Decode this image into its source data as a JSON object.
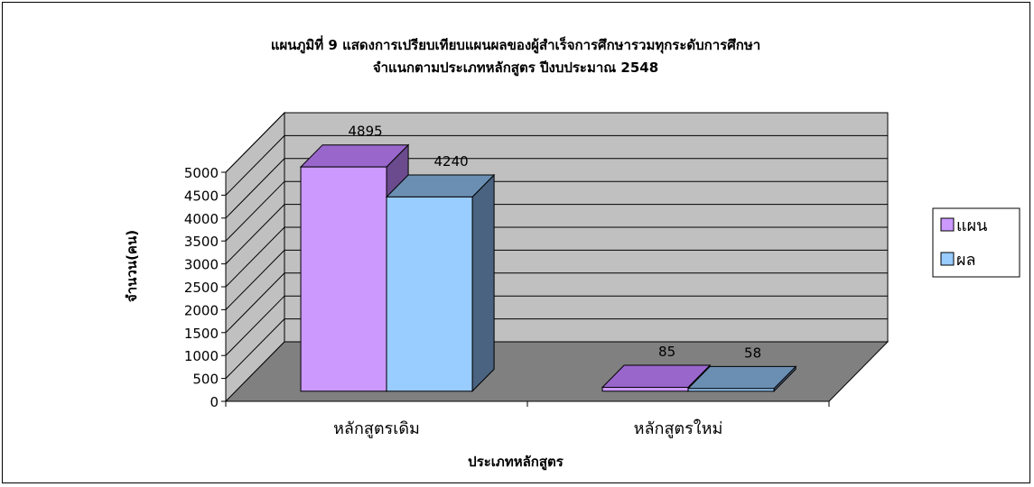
{
  "chart_data": {
    "type": "bar",
    "title_line1": "แผนภูมิที่ 9 แสดงการเปรียบเทียบแผนผลของผู้สำเร็จการศึกษารวมทุกระดับการศึกษา",
    "title_line2": "จำแนกตามประเภทหลักสูตร ปีงบประมาณ 2548",
    "xlabel": "ประเภทหลักสูตร",
    "ylabel": "จำนวน(คน)",
    "categories": [
      "หลักสูตรเดิม",
      "หลักสูตรใหม่"
    ],
    "series": [
      {
        "name": "แผน",
        "values": [
          4895,
          85
        ],
        "front": "#cc99ff",
        "top": "#9966cc",
        "side": "#6b4a8e"
      },
      {
        "name": "ผล",
        "values": [
          4240,
          58
        ],
        "front": "#99ccff",
        "top": "#6b8fb3",
        "side": "#4a6380"
      }
    ],
    "yticks": [
      0,
      500,
      1000,
      1500,
      2000,
      2500,
      3000,
      3500,
      4000,
      4500,
      5000
    ],
    "ylim": [
      0,
      5000
    ],
    "gridlines": true,
    "chart_type": "3d-clustered-column",
    "legend_position": "right",
    "colors": {
      "wall": "#c0c0c0",
      "floor": "#808080"
    }
  }
}
